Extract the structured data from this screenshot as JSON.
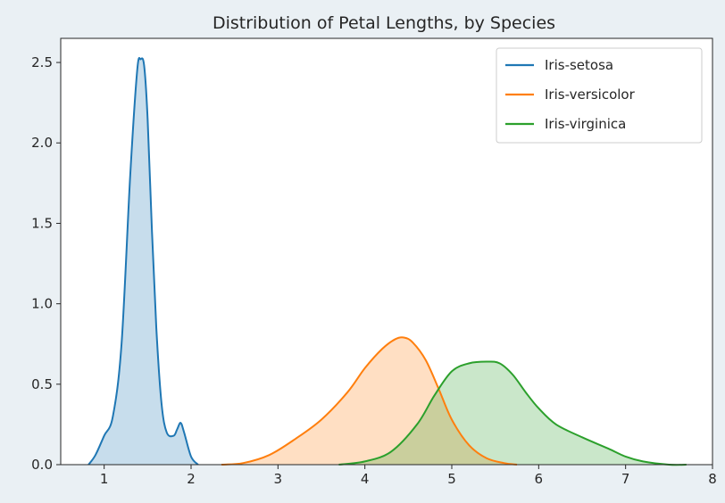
{
  "chart_data": {
    "type": "area",
    "title": "Distribution of Petal Lengths, by Species",
    "xlabel": "",
    "ylabel": "",
    "xlim": [
      0.5,
      8.0
    ],
    "ylim": [
      0,
      2.65
    ],
    "xticks": [
      1,
      2,
      3,
      4,
      5,
      6,
      7,
      8
    ],
    "yticks": [
      0.0,
      0.5,
      1.0,
      1.5,
      2.0,
      2.5
    ],
    "ytick_labels": [
      "0.0",
      "0.5",
      "1.0",
      "1.5",
      "2.0",
      "2.5"
    ],
    "grid": false,
    "legend_position": "top-right",
    "series": [
      {
        "name": "Iris-setosa",
        "color": "#1f77b4",
        "x": [
          0.82,
          0.9,
          1.0,
          1.1,
          1.2,
          1.3,
          1.38,
          1.42,
          1.46,
          1.5,
          1.55,
          1.6,
          1.66,
          1.72,
          1.8,
          1.84,
          1.88,
          1.92,
          2.0,
          2.08
        ],
        "y": [
          0.0,
          0.06,
          0.18,
          0.3,
          0.75,
          1.8,
          2.45,
          2.52,
          2.48,
          2.15,
          1.45,
          0.85,
          0.38,
          0.2,
          0.18,
          0.22,
          0.26,
          0.2,
          0.05,
          0.0
        ]
      },
      {
        "name": "Iris-versicolor",
        "color": "#ff7f0e",
        "x": [
          2.35,
          2.6,
          2.9,
          3.2,
          3.5,
          3.8,
          4.0,
          4.2,
          4.35,
          4.45,
          4.55,
          4.7,
          4.85,
          5.0,
          5.2,
          5.4,
          5.6,
          5.75
        ],
        "y": [
          0.0,
          0.01,
          0.06,
          0.16,
          0.28,
          0.45,
          0.6,
          0.72,
          0.78,
          0.79,
          0.76,
          0.65,
          0.47,
          0.28,
          0.12,
          0.04,
          0.01,
          0.0
        ]
      },
      {
        "name": "Iris-virginica",
        "color": "#2ca02c",
        "x": [
          3.7,
          4.0,
          4.3,
          4.6,
          4.8,
          5.0,
          5.2,
          5.4,
          5.55,
          5.7,
          5.85,
          6.0,
          6.2,
          6.5,
          6.8,
          7.0,
          7.2,
          7.5,
          7.7
        ],
        "y": [
          0.0,
          0.02,
          0.08,
          0.25,
          0.43,
          0.58,
          0.63,
          0.64,
          0.63,
          0.56,
          0.45,
          0.35,
          0.25,
          0.17,
          0.1,
          0.05,
          0.02,
          0.0,
          0.0
        ]
      }
    ]
  }
}
